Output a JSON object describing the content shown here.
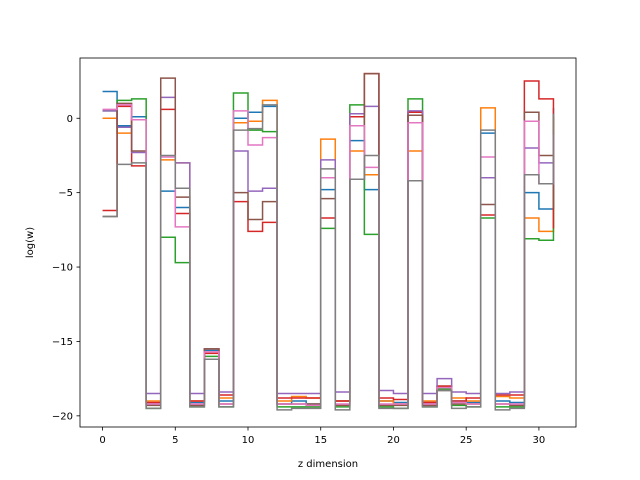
{
  "chart_data": {
    "type": "line",
    "step": "post",
    "title": "",
    "xlabel": "z dimension",
    "ylabel": "log(w)",
    "xlim": [
      -1.55,
      32.55
    ],
    "ylim": [
      -20.75,
      4.05
    ],
    "xticks": [
      0,
      5,
      10,
      15,
      20,
      25,
      30
    ],
    "yticks": [
      -20,
      -15,
      -10,
      -5,
      0
    ],
    "ytick_labels": [
      "−20",
      "−15",
      "−10",
      "−5",
      "0"
    ],
    "grid": false,
    "legend": "none",
    "x": [
      0,
      1,
      2,
      3,
      4,
      5,
      6,
      7,
      8,
      9,
      10,
      11,
      12,
      13,
      14,
      15,
      16,
      17,
      18,
      19,
      20,
      21,
      22,
      23,
      24,
      25,
      26,
      27,
      28,
      29,
      30,
      31
    ],
    "series": [
      {
        "color": "#1f77b4",
        "values": [
          1.8,
          -0.5,
          0.1,
          -19.2,
          -4.9,
          -6.0,
          -19.1,
          -15.6,
          -19.0,
          0.0,
          0.4,
          0.8,
          -19.2,
          -19.0,
          -19.2,
          -4.8,
          -19.0,
          -1.5,
          -4.8,
          -19.0,
          -19.1,
          0.4,
          -19.1,
          -18.0,
          -19.0,
          -19.1,
          -1.0,
          -19.0,
          -19.1,
          -5.0,
          -6.1,
          0.7
        ]
      },
      {
        "color": "#ff7f0e",
        "values": [
          0.0,
          -1.0,
          -0.1,
          -19.0,
          -2.8,
          -3.0,
          -19.0,
          -15.5,
          -18.8,
          -0.3,
          -0.2,
          1.2,
          -19.0,
          -18.7,
          -18.8,
          -1.4,
          -19.0,
          -2.2,
          -3.8,
          -19.0,
          -19.2,
          -2.2,
          -19.0,
          -18.0,
          -18.8,
          -19.0,
          0.7,
          -18.7,
          -18.8,
          -6.7,
          -7.6,
          0.1
        ]
      },
      {
        "color": "#2ca02c",
        "values": [
          0.5,
          1.2,
          1.3,
          -19.5,
          -8.0,
          -9.7,
          -19.4,
          -16.0,
          -19.4,
          1.7,
          -0.8,
          -0.9,
          -19.4,
          -19.4,
          -19.4,
          -7.4,
          -19.4,
          0.9,
          -7.8,
          -19.4,
          -19.5,
          1.3,
          -19.4,
          -18.2,
          -19.3,
          -19.4,
          -6.7,
          -19.4,
          -19.4,
          -8.1,
          -8.2,
          0.1
        ]
      },
      {
        "color": "#d62728",
        "values": [
          -6.2,
          0.8,
          -3.2,
          -19.1,
          0.6,
          -6.4,
          -19.0,
          -15.8,
          -18.6,
          -5.6,
          -7.6,
          -7.0,
          -18.8,
          -18.8,
          -18.8,
          -6.7,
          -19.0,
          0.1,
          3.0,
          -18.8,
          -18.9,
          0.4,
          -19.1,
          -18.0,
          -19.0,
          -18.8,
          -6.5,
          -18.6,
          -18.6,
          2.5,
          1.3,
          -7.4
        ]
      },
      {
        "color": "#9467bd",
        "values": [
          0.5,
          -0.6,
          -2.3,
          -18.5,
          1.4,
          -3.0,
          -18.5,
          -15.5,
          -18.4,
          -2.2,
          -4.9,
          -4.7,
          -18.5,
          -18.5,
          -18.5,
          -2.8,
          -18.4,
          0.3,
          0.8,
          -18.3,
          -18.5,
          0.5,
          -18.5,
          -17.5,
          -18.4,
          -18.5,
          -4.0,
          -18.5,
          -18.4,
          -2.0,
          -3.0,
          -4.8
        ]
      },
      {
        "color": "#8c564b",
        "values": [
          -6.6,
          1.0,
          -2.2,
          -19.3,
          2.7,
          -5.3,
          -19.3,
          -15.5,
          -19.2,
          -5.0,
          -6.8,
          -5.6,
          -19.2,
          -19.2,
          -19.2,
          -5.4,
          -19.3,
          -4.1,
          3.0,
          -19.3,
          -19.3,
          0.2,
          -19.3,
          -18.3,
          -19.2,
          -19.2,
          -5.8,
          -19.2,
          -19.3,
          0.4,
          -2.5,
          -6.0
        ]
      },
      {
        "color": "#e377c2",
        "values": [
          0.6,
          0.9,
          -0.1,
          -19.2,
          -2.6,
          -7.3,
          -19.2,
          -15.7,
          -19.2,
          0.5,
          -1.8,
          -1.3,
          -19.2,
          -19.2,
          -19.3,
          -4.0,
          -19.2,
          -0.5,
          -3.3,
          -19.2,
          -19.2,
          -0.3,
          -19.2,
          -18.1,
          -19.1,
          -19.2,
          -2.6,
          -19.2,
          -19.2,
          -0.2,
          -4.4,
          -1.1
        ]
      },
      {
        "color": "#7f7f7f",
        "values": [
          -6.6,
          -3.1,
          -3.0,
          -19.5,
          -2.5,
          -4.7,
          -19.4,
          -16.2,
          -19.4,
          -0.8,
          -0.7,
          0.9,
          -19.6,
          -19.5,
          -19.5,
          -3.4,
          -19.6,
          -4.1,
          -2.5,
          -19.5,
          -19.5,
          -4.2,
          -19.4,
          -18.3,
          -19.5,
          -19.4,
          -0.8,
          -19.6,
          -19.5,
          -3.8,
          -4.4,
          0.3
        ]
      }
    ]
  }
}
